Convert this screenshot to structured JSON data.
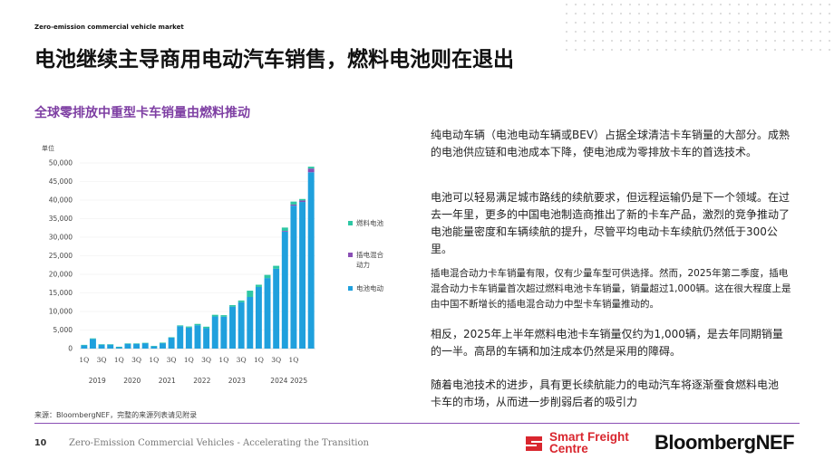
{
  "header": {
    "tagline": "Zero-emission commercial vehicle market",
    "title": "电池继续主导商用电动汽车销售，燃料电池则在退出"
  },
  "chart_section": {
    "title": "全球零排放中重型卡车销量由燃料推动"
  },
  "chart_data": {
    "type": "bar",
    "stacked": true,
    "ylabel": "单位",
    "ylim": [
      0,
      50000
    ],
    "y_ticks": [
      "50,000",
      "45,000",
      "40,000",
      "35,000",
      "30,000",
      "25,000",
      "20,000",
      "15,000",
      "10,000",
      "5,000",
      "0"
    ],
    "x_quarter_labels": [
      "1Q",
      "3Q",
      "1Q",
      "3Q",
      "1Q",
      "3Q",
      "1Q",
      "3Q",
      "1Q",
      "3Q",
      "1Q",
      "3Q",
      "1Q"
    ],
    "x_year_labels": [
      "2019",
      "2020",
      "2021",
      "2022",
      "2023",
      "2024",
      "2025"
    ],
    "legend_placement": "right",
    "series": [
      {
        "name": "电池电动",
        "color": "#1fa0dd",
        "values": [
          900,
          2600,
          1100,
          1100,
          450,
          1300,
          1300,
          1450,
          650,
          1450,
          2950,
          6050,
          5650,
          6300,
          5500,
          8650,
          8600,
          11300,
          12500,
          13900,
          16600,
          19000,
          21500,
          31500,
          38500,
          39500,
          47500
        ]
      },
      {
        "name": "插电混合动力",
        "color": "#8a4fb5",
        "values": [
          0,
          0,
          0,
          0,
          0,
          0,
          0,
          0,
          0,
          0,
          0,
          0,
          0,
          0,
          0,
          0,
          0,
          0,
          0,
          0,
          0,
          0,
          0,
          200,
          300,
          400,
          1000
        ]
      },
      {
        "name": "燃料电池",
        "color": "#2ec7a4",
        "values": [
          100,
          150,
          50,
          50,
          50,
          100,
          100,
          100,
          50,
          150,
          100,
          200,
          300,
          350,
          400,
          450,
          400,
          400,
          450,
          1700,
          600,
          850,
          800,
          900,
          800,
          400,
          500
        ]
      }
    ]
  },
  "paragraphs": {
    "p1": "纯电动车辆（电池电动车辆或BEV）占据全球清洁卡车销量的大部分。成熟的电池供应链和电池成本下降，使电池成为零排放卡车的首选技术。",
    "p2": "电池可以轻易满足城市路线的续航要求，但远程运输仍是下一个领域。在过去一年里，更多的中国电池制造商推出了新的卡车产品，激烈的竞争推动了电池能量密度和车辆续航的提升，尽管平均电动卡车续航仍然低于300公里。",
    "p3": "插电混合动力卡车销量有限，仅有少量车型可供选择。然而，2025年第二季度，插电混合动力卡车销量首次超过燃料电池卡车销量，销量超过1,000辆。这在很大程度上是由中国不断增长的插电混合动力中型卡车销量推动的。",
    "p4": "相反，2025年上半年燃料电池卡车销量仅约为1,000辆，是去年同期销量的一半。高昂的车辆和加注成本仍然是采用的障碍。",
    "p5": "随着电池技术的进步，具有更长续航能力的电动汽车将逐渐蚕食燃料电池卡车的市场，从而进一步削弱后者的吸引力"
  },
  "source": "来源：BloombergNEF，完整的来源列表请见附录",
  "footer": {
    "page_number": "10",
    "report_title": "Zero-Emission Commercial Vehicles - Accelerating the Transition",
    "sfc_line1": "Smart Freight",
    "sfc_line2": "Centre",
    "sfc_color": "#d9262e",
    "bnef_logo": "BloombergNEF"
  }
}
